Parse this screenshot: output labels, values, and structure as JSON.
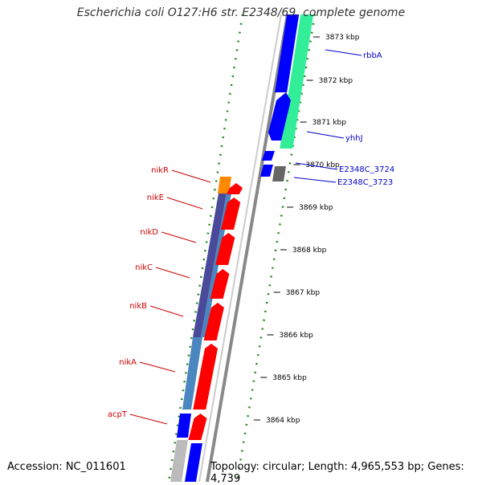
{
  "title": "Escherichia coli O127:H6 str. E2348/69, complete genome",
  "footer": {
    "accession": "Accession: NC_011601",
    "summary": "Topology: circular; Length: 4,965,553 bp; Genes: 4,739"
  },
  "colors": {
    "forward_label": "#0000cc",
    "reverse_label": "#cc0000",
    "forward_cds": "#0000ff",
    "reverse_cds": "#ff0000",
    "rrna": "#33ee99",
    "trna": "#ff8800",
    "pseudo": "#666666",
    "operon_dark": "#4a4a9a",
    "operon_light": "#4a86c0",
    "backbone": "#888888",
    "ruler_dots": "#228822"
  },
  "ticks": [
    {
      "label": "3873 kbp"
    },
    {
      "label": "3872 kbp"
    },
    {
      "label": "3871 kbp"
    },
    {
      "label": "3870 kbp"
    },
    {
      "label": "3869 kbp"
    },
    {
      "label": "3868 kbp"
    },
    {
      "label": "3867 kbp"
    },
    {
      "label": "3866 kbp"
    },
    {
      "label": "3865 kbp"
    },
    {
      "label": "3864 kbp"
    }
  ],
  "forward_genes": [
    {
      "label": "rbbA",
      "kind": "cds"
    },
    {
      "label": "yhhJ",
      "kind": "cds"
    },
    {
      "label": "E2348C_3724",
      "kind": "cds"
    },
    {
      "label": "E2348C_3723",
      "kind": "pseudo"
    }
  ],
  "reverse_genes": [
    {
      "label": "nikR",
      "kind": "trna"
    },
    {
      "label": "nikE",
      "kind": "cds"
    },
    {
      "label": "nikD",
      "kind": "cds"
    },
    {
      "label": "nikC",
      "kind": "cds"
    },
    {
      "label": "nikB",
      "kind": "cds"
    },
    {
      "label": "nikA",
      "kind": "cds"
    },
    {
      "label": "acpT",
      "kind": "cds"
    }
  ]
}
